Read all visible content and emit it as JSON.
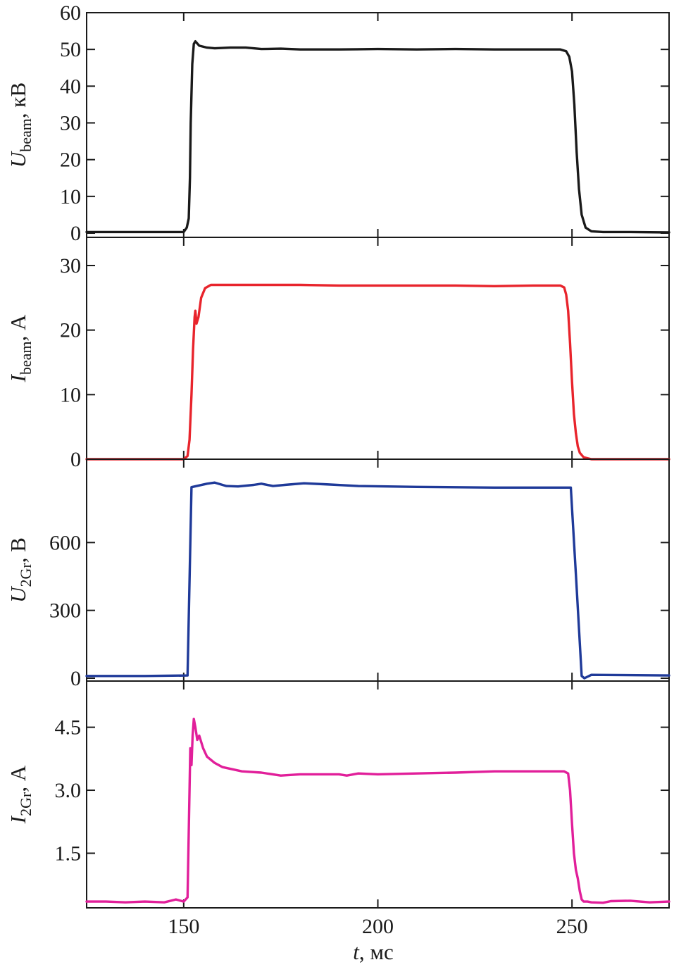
{
  "chart_data": [
    {
      "type": "line",
      "ylabel": {
        "symbol": "U",
        "subscript": "beam",
        "unit": ", кВ"
      },
      "xlim": [
        125,
        275
      ],
      "ylim": [
        0,
        60
      ],
      "yticks": [
        0,
        10,
        20,
        30,
        40,
        50,
        60
      ],
      "ytick_labels": [
        "0",
        "10",
        "20",
        "30",
        "40",
        "50",
        "60"
      ],
      "xticks": [
        150,
        200,
        250
      ],
      "color": "#1a1a1a",
      "series": [
        {
          "x": [
            125,
            140,
            150,
            150.8,
            151.3,
            151.6,
            151.8,
            152.2,
            152.6,
            153,
            154,
            156,
            158,
            162,
            166,
            170,
            175,
            180,
            190,
            200,
            210,
            220,
            230,
            240,
            247,
            248.5,
            249.3,
            250,
            250.6,
            251.2,
            251.8,
            252.5,
            253.5,
            255,
            258,
            265,
            275
          ],
          "y": [
            0.3,
            0.3,
            0.3,
            1.5,
            4,
            15,
            30,
            46,
            51.5,
            52.2,
            51,
            50.5,
            50.3,
            50.5,
            50.5,
            50.1,
            50.2,
            50,
            50,
            50.1,
            50,
            50.1,
            50,
            50,
            50,
            49.5,
            48,
            44,
            35,
            22,
            12,
            5,
            1.5,
            0.5,
            0.3,
            0.3,
            0.2
          ]
        }
      ]
    },
    {
      "type": "line",
      "ylabel": {
        "symbol": "I",
        "subscript": "beam",
        "unit": ", А"
      },
      "xlim": [
        125,
        275
      ],
      "ylim": [
        0,
        30
      ],
      "yticks": [
        0,
        10,
        20,
        30
      ],
      "ytick_labels": [
        "0",
        "10",
        "20",
        "30"
      ],
      "xticks": [
        150,
        200,
        250
      ],
      "color": "#e8242c",
      "series": [
        {
          "x": [
            125,
            140,
            150,
            151,
            151.5,
            152,
            152.4,
            152.8,
            153,
            153.3,
            153.8,
            154.5,
            155.5,
            157,
            160,
            170,
            180,
            190,
            200,
            210,
            220,
            230,
            240,
            247,
            248,
            248.5,
            249,
            249.5,
            250,
            250.5,
            251,
            251.5,
            252,
            253,
            255,
            265,
            275
          ],
          "y": [
            0,
            0,
            0,
            0.5,
            3,
            10,
            17,
            22,
            23,
            21,
            22,
            25,
            26.5,
            27,
            27,
            27,
            27,
            26.9,
            26.9,
            26.9,
            26.9,
            26.8,
            26.9,
            26.9,
            26.6,
            25.5,
            23,
            18,
            12,
            7,
            4,
            2,
            1,
            0.3,
            0,
            0,
            0
          ]
        }
      ]
    },
    {
      "type": "line",
      "ylabel": {
        "symbol": "U",
        "subscript": "2Gr",
        "unit": ", В"
      },
      "xlim": [
        125,
        275
      ],
      "ylim": [
        0,
        900
      ],
      "yticks": [
        0,
        300,
        600
      ],
      "ytick_labels": [
        "0",
        "300",
        "600"
      ],
      "xticks": [
        150,
        200,
        250
      ],
      "color": "#1f3a99",
      "series": [
        {
          "x": [
            125,
            140,
            151,
            152,
            156,
            158,
            161,
            164,
            168,
            170,
            173,
            176,
            181,
            186,
            195,
            210,
            230,
            249.7,
            251.2,
            252.5,
            253.2,
            253.8,
            255,
            275
          ],
          "y": [
            10,
            10,
            12,
            845,
            860,
            865,
            850,
            848,
            855,
            860,
            850,
            855,
            862,
            858,
            850,
            846,
            843,
            843,
            400,
            10,
            0,
            5,
            15,
            12
          ]
        }
      ]
    },
    {
      "type": "line",
      "ylabel": {
        "symbol": "I",
        "subscript": "2Gr",
        "unit": ", А"
      },
      "xlim": [
        125,
        275
      ],
      "ylim": [
        0.2,
        5.6
      ],
      "yticks": [
        1.5,
        3.0,
        4.5
      ],
      "ytick_labels": [
        "1.5",
        "3.0",
        "4.5"
      ],
      "xticks": [
        150,
        200,
        250
      ],
      "xtick_labels": [
        "150",
        "200",
        "250"
      ],
      "color": "#e11f9a",
      "series": [
        {
          "x": [
            125,
            130,
            135,
            140,
            145,
            148,
            150,
            151,
            151.5,
            151.7,
            152,
            152.3,
            152.6,
            153,
            153.5,
            154,
            155,
            156,
            158,
            160,
            165,
            170,
            175,
            180,
            190,
            192,
            195,
            200,
            210,
            220,
            230,
            240,
            248,
            249,
            249.5,
            250,
            250.5,
            251,
            251.5,
            252,
            252.5,
            253,
            254,
            255,
            258,
            260,
            265,
            270,
            275
          ],
          "y": [
            0.35,
            0.35,
            0.33,
            0.35,
            0.33,
            0.4,
            0.35,
            0.45,
            3.0,
            4.0,
            3.6,
            4.3,
            4.7,
            4.5,
            4.2,
            4.3,
            4.0,
            3.8,
            3.65,
            3.55,
            3.45,
            3.42,
            3.35,
            3.38,
            3.38,
            3.35,
            3.4,
            3.38,
            3.4,
            3.42,
            3.45,
            3.45,
            3.45,
            3.4,
            3.0,
            2.2,
            1.5,
            1.1,
            0.9,
            0.6,
            0.4,
            0.35,
            0.35,
            0.33,
            0.32,
            0.36,
            0.37,
            0.33,
            0.35
          ]
        }
      ]
    }
  ],
  "xlabel": {
    "symbol": "t",
    "unit": ", мс"
  }
}
